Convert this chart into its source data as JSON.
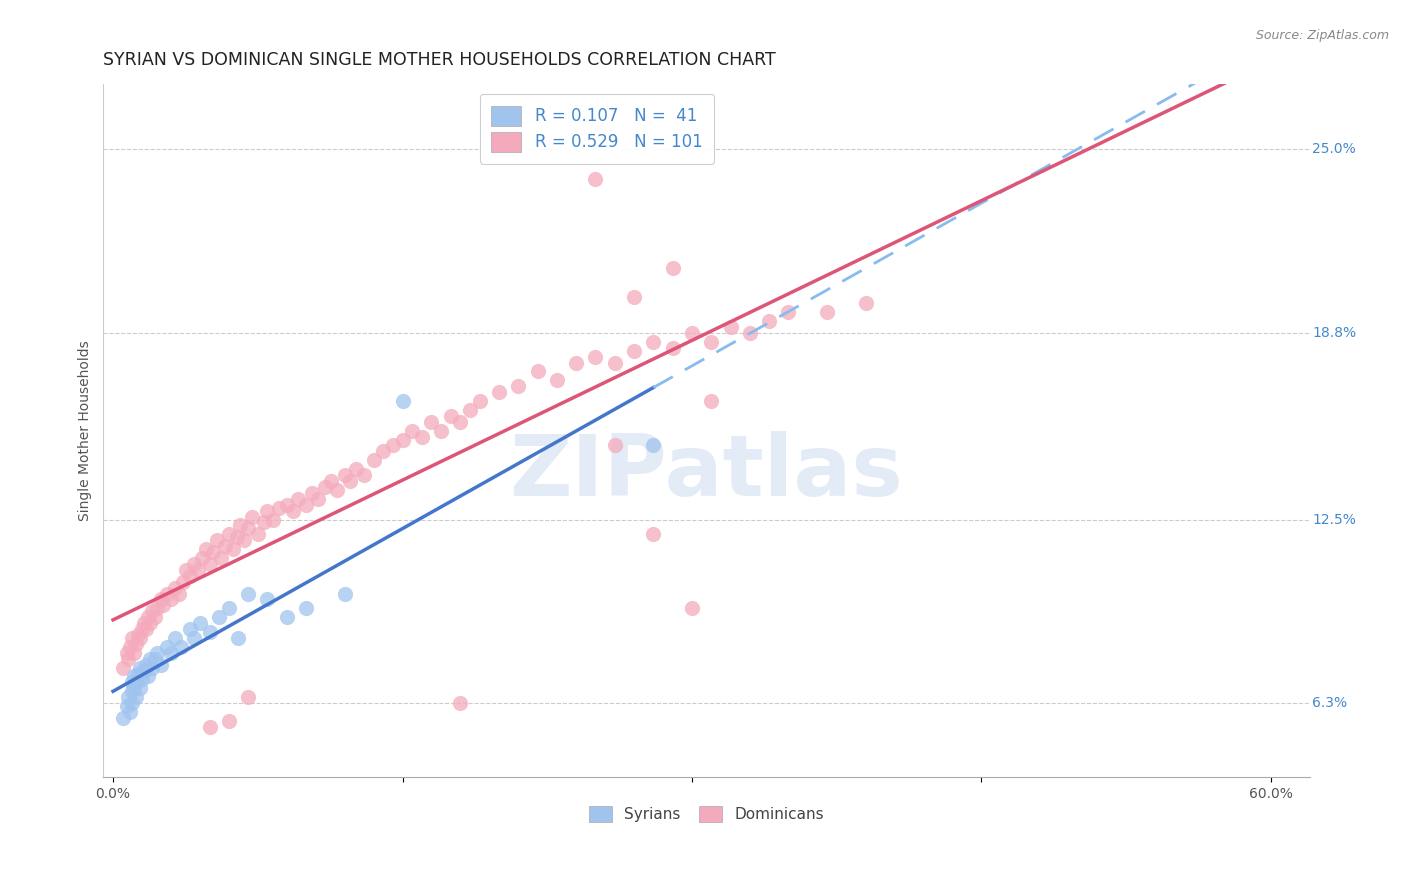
{
  "title": "SYRIAN VS DOMINICAN SINGLE MOTHER HOUSEHOLDS CORRELATION CHART",
  "source": "Source: ZipAtlas.com",
  "ylabel": "Single Mother Households",
  "xlim": [
    -0.005,
    0.62
  ],
  "ylim": [
    0.038,
    0.272
  ],
  "yticks": [
    0.063,
    0.125,
    0.188,
    0.25
  ],
  "ytick_labels": [
    "6.3%",
    "12.5%",
    "18.8%",
    "25.0%"
  ],
  "xticks": [
    0.0,
    0.15,
    0.3,
    0.45,
    0.6
  ],
  "xtick_labels": [
    "0.0%",
    "",
    "",
    "",
    "60.0%"
  ],
  "syrian_color": "#A0C4EE",
  "dominican_color": "#F4AABC",
  "syrian_line_color": "#4477CC",
  "dominican_line_color": "#DD5577",
  "background_color": "#FFFFFF",
  "R_syrian": 0.107,
  "N_syrian": 41,
  "R_dominican": 0.529,
  "N_dominican": 101,
  "watermark": "ZIPatlas",
  "watermark_color": "#C8D8EE",
  "title_fontsize": 12.5,
  "source_fontsize": 9,
  "axis_label_fontsize": 10,
  "tick_fontsize": 10,
  "legend_fontsize": 12,
  "right_tick_color": "#4488CC",
  "syrian_x": [
    0.005,
    0.007,
    0.008,
    0.009,
    0.01,
    0.01,
    0.01,
    0.011,
    0.011,
    0.012,
    0.012,
    0.013,
    0.014,
    0.014,
    0.015,
    0.016,
    0.017,
    0.018,
    0.019,
    0.02,
    0.022,
    0.023,
    0.025,
    0.028,
    0.03,
    0.032,
    0.035,
    0.04,
    0.042,
    0.045,
    0.05,
    0.055,
    0.06,
    0.065,
    0.07,
    0.08,
    0.09,
    0.1,
    0.12,
    0.15,
    0.28
  ],
  "syrian_y": [
    0.058,
    0.062,
    0.065,
    0.06,
    0.063,
    0.067,
    0.07,
    0.068,
    0.072,
    0.065,
    0.07,
    0.073,
    0.068,
    0.075,
    0.071,
    0.074,
    0.076,
    0.072,
    0.078,
    0.075,
    0.078,
    0.08,
    0.076,
    0.082,
    0.08,
    0.085,
    0.082,
    0.088,
    0.085,
    0.09,
    0.087,
    0.092,
    0.095,
    0.085,
    0.1,
    0.098,
    0.092,
    0.095,
    0.1,
    0.165,
    0.15
  ],
  "dominican_x": [
    0.005,
    0.007,
    0.008,
    0.009,
    0.01,
    0.011,
    0.012,
    0.013,
    0.014,
    0.015,
    0.016,
    0.017,
    0.018,
    0.019,
    0.02,
    0.022,
    0.023,
    0.025,
    0.026,
    0.028,
    0.03,
    0.032,
    0.034,
    0.036,
    0.038,
    0.04,
    0.042,
    0.044,
    0.046,
    0.048,
    0.05,
    0.052,
    0.054,
    0.056,
    0.058,
    0.06,
    0.062,
    0.064,
    0.066,
    0.068,
    0.07,
    0.072,
    0.075,
    0.078,
    0.08,
    0.083,
    0.086,
    0.09,
    0.093,
    0.096,
    0.1,
    0.103,
    0.106,
    0.11,
    0.113,
    0.116,
    0.12,
    0.123,
    0.126,
    0.13,
    0.135,
    0.14,
    0.145,
    0.15,
    0.155,
    0.16,
    0.165,
    0.17,
    0.175,
    0.18,
    0.185,
    0.19,
    0.2,
    0.21,
    0.22,
    0.23,
    0.24,
    0.25,
    0.26,
    0.27,
    0.28,
    0.29,
    0.3,
    0.31,
    0.32,
    0.33,
    0.34,
    0.35,
    0.37,
    0.39,
    0.25,
    0.26,
    0.27,
    0.28,
    0.29,
    0.3,
    0.31,
    0.05,
    0.06,
    0.07,
    0.18
  ],
  "dominican_y": [
    0.075,
    0.08,
    0.078,
    0.082,
    0.085,
    0.08,
    0.083,
    0.086,
    0.085,
    0.088,
    0.09,
    0.088,
    0.092,
    0.09,
    0.094,
    0.092,
    0.095,
    0.098,
    0.096,
    0.1,
    0.098,
    0.102,
    0.1,
    0.104,
    0.108,
    0.106,
    0.11,
    0.108,
    0.112,
    0.115,
    0.11,
    0.114,
    0.118,
    0.112,
    0.116,
    0.12,
    0.115,
    0.119,
    0.123,
    0.118,
    0.122,
    0.126,
    0.12,
    0.124,
    0.128,
    0.125,
    0.129,
    0.13,
    0.128,
    0.132,
    0.13,
    0.134,
    0.132,
    0.136,
    0.138,
    0.135,
    0.14,
    0.138,
    0.142,
    0.14,
    0.145,
    0.148,
    0.15,
    0.152,
    0.155,
    0.153,
    0.158,
    0.155,
    0.16,
    0.158,
    0.162,
    0.165,
    0.168,
    0.17,
    0.175,
    0.172,
    0.178,
    0.18,
    0.178,
    0.182,
    0.185,
    0.183,
    0.188,
    0.185,
    0.19,
    0.188,
    0.192,
    0.195,
    0.195,
    0.198,
    0.24,
    0.15,
    0.2,
    0.12,
    0.21,
    0.095,
    0.165,
    0.055,
    0.057,
    0.065,
    0.063
  ]
}
